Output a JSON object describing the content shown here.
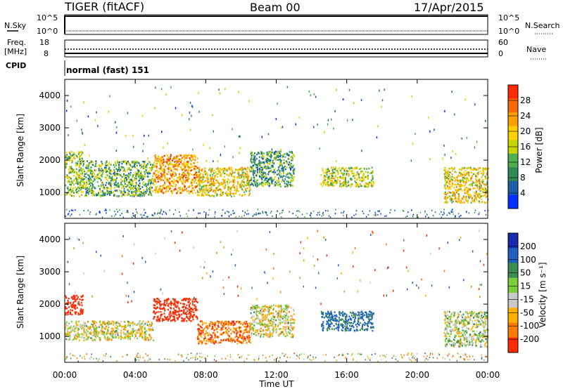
{
  "header": {
    "station": "TIGER (fitACF)",
    "beam": "Beam 00",
    "date": "17/Apr/2015"
  },
  "noise_panel": {
    "left_label": "N.Sky",
    "right_label": "N.Search",
    "left_ticks": [
      "10^5",
      "10^0"
    ],
    "right_ticks": [
      "10^5",
      "10^0"
    ]
  },
  "freq_panel": {
    "left_label_line1": "Freq.",
    "left_label_line2": "[MHz]",
    "right_label": "Nave",
    "left_ticks": [
      "18",
      "8"
    ],
    "right_ticks": [
      "60",
      "0"
    ]
  },
  "cpid": {
    "label": "CPID",
    "value": "normal (fast) 151"
  },
  "power_panel": {
    "ylabel": "Slant Range [km]",
    "yticks": [
      "4000",
      "3000",
      "2000",
      "1000"
    ],
    "colorbar_label": "Power [dB]",
    "colorbar_ticks": [
      "28",
      "24",
      "20",
      "16",
      "12",
      "8",
      "4"
    ],
    "colors": [
      "#0030ff",
      "#1a5fa8",
      "#2e8b57",
      "#4fb04f",
      "#c8d400",
      "#ffd000",
      "#ffa000",
      "#ff6a00",
      "#ff2a00"
    ]
  },
  "velocity_panel": {
    "ylabel": "Slant Range [km]",
    "yticks": [
      "4000",
      "3000",
      "2000",
      "1000"
    ],
    "colorbar_label": "Velocity [m s⁻¹]",
    "colorbar_ticks": [
      "200",
      "100",
      "50",
      "15",
      "-15",
      "-50",
      "-100",
      "-200"
    ],
    "colors": [
      "#1a2ab0",
      "#2060c0",
      "#3a8c50",
      "#7ccd3a",
      "#c8c8c8",
      "#ffb000",
      "#ff7a00",
      "#ff2a00"
    ]
  },
  "xaxis": {
    "label": "Time UT",
    "ticks": [
      "00:00",
      "04:00",
      "08:00",
      "12:00",
      "16:00",
      "20:00",
      "00:00"
    ]
  },
  "chart_data": [
    {
      "type": "heatmap",
      "title": "Power",
      "xlabel": "Time UT",
      "ylabel": "Slant Range [km]",
      "xlim_hours": [
        0,
        24
      ],
      "ylim": [
        200,
        4500
      ],
      "colorbar": {
        "label": "Power [dB]",
        "range": [
          0,
          30
        ]
      },
      "echo_regions": [
        {
          "t_start": 0.0,
          "t_end": 1.0,
          "range_km": [
            900,
            2300
          ],
          "power_db": 14
        },
        {
          "t_start": 1.0,
          "t_end": 5.0,
          "range_km": [
            900,
            2000
          ],
          "power_db": 12
        },
        {
          "t_start": 5.0,
          "t_end": 7.5,
          "range_km": [
            1000,
            2200
          ],
          "power_db": 22
        },
        {
          "t_start": 7.5,
          "t_end": 10.5,
          "range_km": [
            900,
            1800
          ],
          "power_db": 18
        },
        {
          "t_start": 10.5,
          "t_end": 13.0,
          "range_km": [
            1200,
            2300
          ],
          "power_db": 10
        },
        {
          "t_start": 14.5,
          "t_end": 17.5,
          "range_km": [
            1200,
            1800
          ],
          "power_db": 15
        },
        {
          "t_start": 21.5,
          "t_end": 24.0,
          "range_km": [
            700,
            1800
          ],
          "power_db": 18
        }
      ]
    },
    {
      "type": "heatmap",
      "title": "Velocity",
      "xlabel": "Time UT",
      "ylabel": "Slant Range [km]",
      "xlim_hours": [
        0,
        24
      ],
      "ylim": [
        200,
        4500
      ],
      "colorbar": {
        "label": "Velocity [m s⁻¹]",
        "range": [
          -250,
          250
        ]
      },
      "echo_regions": [
        {
          "t_start": 0.0,
          "t_end": 5.0,
          "range_km": [
            900,
            1500
          ],
          "velocity": 0
        },
        {
          "t_start": 0.0,
          "t_end": 1.0,
          "range_km": [
            1700,
            2300
          ],
          "velocity": -200
        },
        {
          "t_start": 5.0,
          "t_end": 7.5,
          "range_km": [
            1500,
            2200
          ],
          "velocity": -200
        },
        {
          "t_start": 7.5,
          "t_end": 10.5,
          "range_km": [
            800,
            1500
          ],
          "velocity": -80
        },
        {
          "t_start": 10.5,
          "t_end": 13.0,
          "range_km": [
            1000,
            2000
          ],
          "velocity": 0
        },
        {
          "t_start": 14.5,
          "t_end": 17.5,
          "range_km": [
            1200,
            1800
          ],
          "velocity": 120
        },
        {
          "t_start": 21.5,
          "t_end": 24.0,
          "range_km": [
            700,
            1800
          ],
          "velocity": 20
        }
      ]
    }
  ]
}
